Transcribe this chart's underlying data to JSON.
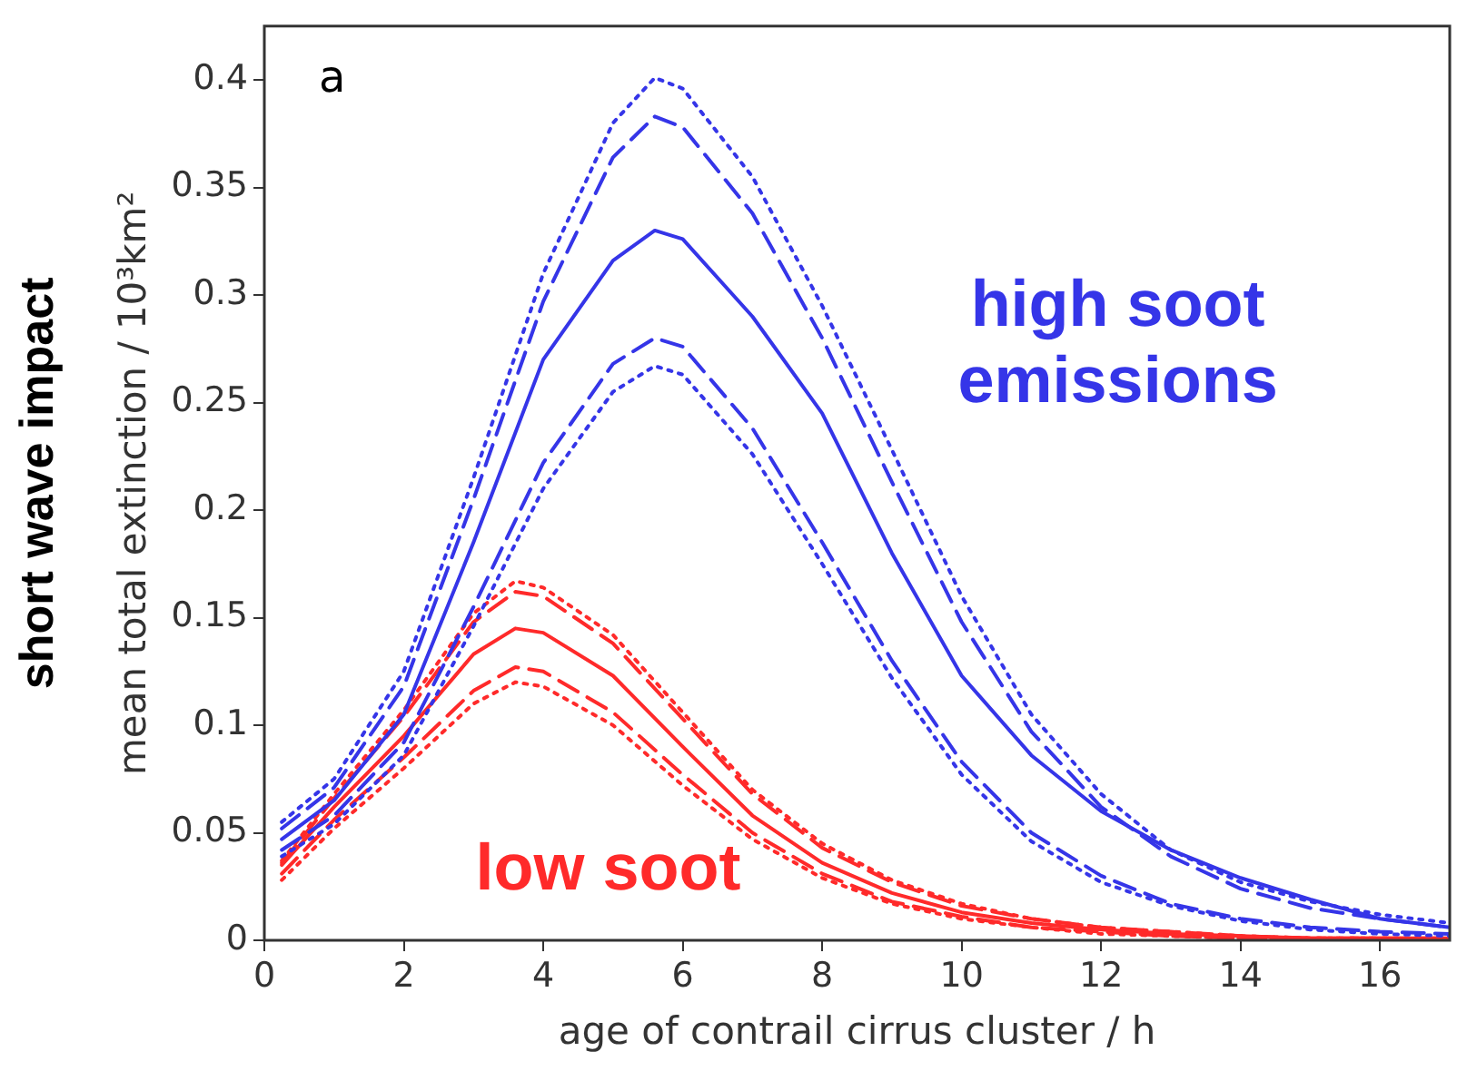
{
  "chart_data": {
    "type": "line",
    "xlabel": "age of contrail cirrus cluster / h",
    "ylabel": "mean total extinction / 10³km²",
    "xlim": [
      0,
      17
    ],
    "ylim": [
      0,
      0.425
    ],
    "xticks": [
      0,
      2,
      4,
      6,
      8,
      10,
      12,
      14,
      16
    ],
    "yticks": [
      0,
      0.05,
      0.1,
      0.15,
      0.2,
      0.25,
      0.3,
      0.35,
      0.4
    ],
    "grid": false,
    "legend": false,
    "marker": "none",
    "annotations": [
      "a",
      "short wave impact",
      "high soot emissions",
      "low soot"
    ],
    "series": [
      {
        "color": "#3535e8",
        "line_style": "dotted",
        "x": [
          0.25,
          1,
          2,
          3,
          4,
          5,
          5.6,
          6,
          7,
          8,
          9,
          10,
          11,
          12,
          13,
          14,
          15,
          16,
          17
        ],
        "values": [
          0.055,
          0.075,
          0.125,
          0.215,
          0.31,
          0.38,
          0.401,
          0.396,
          0.355,
          0.295,
          0.228,
          0.16,
          0.105,
          0.068,
          0.042,
          0.027,
          0.018,
          0.012,
          0.008
        ]
      },
      {
        "color": "#3535e8",
        "line_style": "dashed",
        "x": [
          0.25,
          1,
          2,
          3,
          4,
          5,
          5.6,
          6,
          7,
          8,
          9,
          10,
          11,
          12,
          13,
          14,
          15,
          16,
          17
        ],
        "values": [
          0.052,
          0.071,
          0.118,
          0.205,
          0.297,
          0.364,
          0.383,
          0.378,
          0.338,
          0.28,
          0.213,
          0.148,
          0.097,
          0.062,
          0.039,
          0.024,
          0.015,
          0.01,
          0.006
        ]
      },
      {
        "color": "#3535e8",
        "line_style": "solid",
        "x": [
          0.25,
          1,
          2,
          3,
          4,
          5,
          5.6,
          6,
          7,
          8,
          9,
          10,
          11,
          12,
          13,
          14,
          15,
          16,
          17
        ],
        "values": [
          0.047,
          0.065,
          0.105,
          0.185,
          0.27,
          0.316,
          0.33,
          0.326,
          0.29,
          0.245,
          0.18,
          0.123,
          0.086,
          0.06,
          0.042,
          0.029,
          0.019,
          0.01,
          0.006
        ]
      },
      {
        "color": "#3535e8",
        "line_style": "dashed",
        "x": [
          0.25,
          1,
          2,
          3,
          4,
          5,
          5.6,
          6,
          7,
          8,
          9,
          10,
          11,
          12,
          13,
          14,
          15,
          16,
          17
        ],
        "values": [
          0.042,
          0.058,
          0.092,
          0.155,
          0.222,
          0.268,
          0.28,
          0.276,
          0.238,
          0.185,
          0.13,
          0.083,
          0.05,
          0.03,
          0.017,
          0.01,
          0.006,
          0.004,
          0.003
        ]
      },
      {
        "color": "#3535e8",
        "line_style": "dotted",
        "x": [
          0.25,
          1,
          2,
          3,
          4,
          5,
          5.6,
          6,
          7,
          8,
          9,
          10,
          11,
          12,
          13,
          14,
          15,
          16,
          17
        ],
        "values": [
          0.039,
          0.054,
          0.086,
          0.146,
          0.21,
          0.255,
          0.267,
          0.263,
          0.226,
          0.175,
          0.122,
          0.077,
          0.046,
          0.027,
          0.016,
          0.009,
          0.005,
          0.003,
          0.002
        ]
      },
      {
        "color": "#ff2a2a",
        "line_style": "dotted",
        "x": [
          0.25,
          1,
          2,
          3,
          3.6,
          4,
          5,
          6,
          7,
          8,
          9,
          10,
          11,
          12,
          13,
          14,
          15,
          16,
          17
        ],
        "values": [
          0.037,
          0.068,
          0.107,
          0.152,
          0.167,
          0.164,
          0.142,
          0.106,
          0.07,
          0.045,
          0.028,
          0.017,
          0.01,
          0.006,
          0.004,
          0.002,
          0.001,
          0.001,
          0.001
        ]
      },
      {
        "color": "#ff2a2a",
        "line_style": "dashed",
        "x": [
          0.25,
          1,
          2,
          3,
          3.6,
          4,
          5,
          6,
          7,
          8,
          9,
          10,
          11,
          12,
          13,
          14,
          15,
          16,
          17
        ],
        "values": [
          0.036,
          0.066,
          0.104,
          0.148,
          0.162,
          0.16,
          0.138,
          0.103,
          0.068,
          0.043,
          0.027,
          0.016,
          0.01,
          0.006,
          0.004,
          0.002,
          0.001,
          0.001,
          0.001
        ]
      },
      {
        "color": "#ff2a2a",
        "line_style": "solid",
        "x": [
          0.25,
          1,
          2,
          3,
          3.6,
          4,
          5,
          6,
          7,
          8,
          9,
          10,
          11,
          12,
          13,
          14,
          15,
          16,
          17
        ],
        "values": [
          0.035,
          0.062,
          0.095,
          0.133,
          0.145,
          0.143,
          0.123,
          0.09,
          0.058,
          0.036,
          0.022,
          0.013,
          0.008,
          0.005,
          0.003,
          0.002,
          0.001,
          0.001,
          0.001
        ]
      },
      {
        "color": "#ff2a2a",
        "line_style": "dashed",
        "x": [
          0.25,
          1,
          2,
          3,
          3.6,
          4,
          5,
          6,
          7,
          8,
          9,
          10,
          11,
          12,
          13,
          14,
          15,
          16,
          17
        ],
        "values": [
          0.031,
          0.056,
          0.085,
          0.116,
          0.127,
          0.125,
          0.106,
          0.077,
          0.05,
          0.031,
          0.018,
          0.011,
          0.006,
          0.004,
          0.002,
          0.001,
          0.001,
          0.001,
          0
        ]
      },
      {
        "color": "#ff2a2a",
        "line_style": "dotted",
        "x": [
          0.25,
          1,
          2,
          3,
          3.6,
          4,
          5,
          6,
          7,
          8,
          9,
          10,
          11,
          12,
          13,
          14,
          15,
          16,
          17
        ],
        "values": [
          0.028,
          0.052,
          0.08,
          0.11,
          0.12,
          0.118,
          0.1,
          0.072,
          0.047,
          0.029,
          0.017,
          0.01,
          0.006,
          0.003,
          0.002,
          0.001,
          0.001,
          0,
          0
        ]
      }
    ]
  }
}
